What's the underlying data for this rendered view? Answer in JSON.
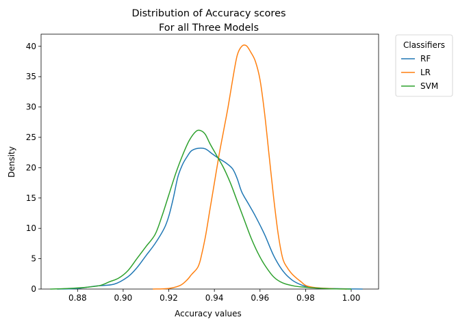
{
  "chart_data": {
    "type": "line",
    "title": [
      "Distribution of Accuracy scores",
      "For all Three Models"
    ],
    "xlabel": "Accuracy values",
    "ylabel": "Density",
    "xlim": [
      0.864,
      1.012
    ],
    "ylim": [
      0,
      42
    ],
    "x_ticks": [
      0.88,
      0.9,
      0.92,
      0.94,
      0.96,
      0.98,
      1.0
    ],
    "x_tick_labels": [
      "0.88",
      "0.90",
      "0.92",
      "0.94",
      "0.96",
      "0.98",
      "1.00"
    ],
    "y_ticks": [
      0,
      5,
      10,
      15,
      20,
      25,
      30,
      35,
      40
    ],
    "y_tick_labels": [
      "0",
      "5",
      "10",
      "15",
      "20",
      "25",
      "30",
      "35",
      "40"
    ],
    "grid": false,
    "legend": {
      "title": "Classifiers",
      "placement": "outside-top-right"
    },
    "series": [
      {
        "name": "RF",
        "color": "#1f77b4",
        "x": [
          0.871,
          0.88,
          0.888,
          0.896,
          0.902,
          0.906,
          0.91,
          0.914,
          0.918,
          0.92,
          0.922,
          0.924,
          0.926,
          0.928,
          0.93,
          0.933,
          0.936,
          0.939,
          0.942,
          0.945,
          0.948,
          0.95,
          0.952,
          0.955,
          0.958,
          0.962,
          0.966,
          0.97,
          0.974,
          0.978,
          0.982,
          0.986,
          0.99,
          0.995,
          1.0,
          1.005
        ],
        "y": [
          0.0,
          0.1,
          0.5,
          0.8,
          2.0,
          3.5,
          5.5,
          7.5,
          10.0,
          12.0,
          15.0,
          18.5,
          20.5,
          21.8,
          22.8,
          23.2,
          23.1,
          22.3,
          21.5,
          20.8,
          19.8,
          18.2,
          16.0,
          14.0,
          12.0,
          9.0,
          5.5,
          3.0,
          1.5,
          0.7,
          0.3,
          0.15,
          0.1,
          0.05,
          0.02,
          0.0
        ]
      },
      {
        "name": "LR",
        "color": "#ff7f0e",
        "x": [
          0.913,
          0.92,
          0.925,
          0.928,
          0.93,
          0.932,
          0.933,
          0.934,
          0.936,
          0.938,
          0.94,
          0.942,
          0.944,
          0.946,
          0.948,
          0.95,
          0.952,
          0.954,
          0.956,
          0.958,
          0.96,
          0.962,
          0.964,
          0.966,
          0.968,
          0.97,
          0.972,
          0.974,
          0.976,
          0.978,
          0.98,
          0.983,
          0.987,
          0.992,
          0.998
        ],
        "y": [
          0.0,
          0.1,
          0.6,
          1.5,
          2.4,
          3.2,
          3.8,
          5.0,
          8.5,
          13.0,
          17.5,
          22.0,
          26.0,
          30.0,
          34.5,
          38.5,
          40.0,
          40.1,
          39.0,
          37.5,
          34.5,
          29.0,
          22.0,
          15.0,
          9.0,
          5.0,
          3.5,
          2.5,
          1.8,
          1.2,
          0.6,
          0.3,
          0.15,
          0.05,
          0.0
        ]
      },
      {
        "name": "SVM",
        "color": "#2ca02c",
        "x": [
          0.868,
          0.876,
          0.884,
          0.89,
          0.894,
          0.898,
          0.902,
          0.906,
          0.91,
          0.914,
          0.917,
          0.92,
          0.923,
          0.926,
          0.929,
          0.932,
          0.934,
          0.936,
          0.938,
          0.941,
          0.944,
          0.947,
          0.95,
          0.953,
          0.956,
          0.959,
          0.962,
          0.966,
          0.97,
          0.975,
          0.98,
          0.985,
          0.99,
          0.995,
          1.0
        ],
        "y": [
          0.0,
          0.1,
          0.3,
          0.6,
          1.2,
          1.8,
          3.0,
          5.0,
          7.0,
          9.0,
          12.0,
          15.5,
          19.0,
          22.0,
          24.5,
          26.0,
          26.1,
          25.5,
          24.0,
          22.0,
          20.0,
          17.5,
          14.5,
          11.5,
          8.5,
          6.0,
          4.0,
          2.0,
          1.0,
          0.5,
          0.3,
          0.15,
          0.05,
          0.02,
          0.0
        ]
      }
    ]
  }
}
